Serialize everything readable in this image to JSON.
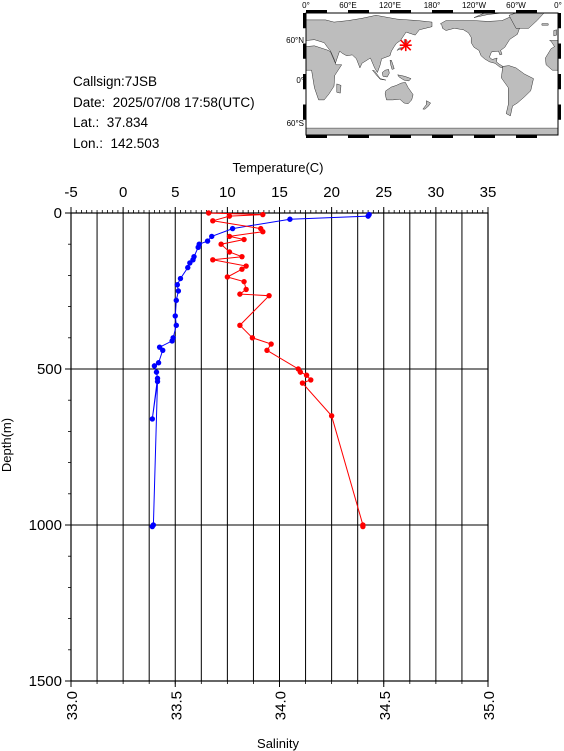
{
  "station": {
    "callsign": "Callsign:7JSB",
    "date": "Date:  2025/07/08 17:58(UTC)",
    "lat": "Lat.:  37.834",
    "lon": "Lon.:  142.503"
  },
  "map": {
    "lon_labels": [
      "0°",
      "60°E",
      "120°E",
      "180°",
      "120°W",
      "60°W",
      "0°"
    ],
    "lat_labels": [
      "60°N",
      "0°",
      "60°S"
    ],
    "marker_lon": 142.503,
    "marker_lat": 37.834,
    "marker_color": "#ff0000",
    "land_color": "#bdbdbd",
    "ocean_color": "#ffffff"
  },
  "chart_data": {
    "type": "line",
    "ylabel": "Depth(m)",
    "ylim": [
      1500,
      0
    ],
    "yticks": [
      "0",
      "500",
      "1000",
      "1500"
    ],
    "top_axis": {
      "label": "Temperature(C)",
      "range": [
        -5,
        35
      ],
      "ticks": [
        "-5",
        "0",
        "5",
        "10",
        "15",
        "20",
        "25",
        "30",
        "35"
      ]
    },
    "bottom_axis": {
      "label": "Salinity",
      "range": [
        33.0,
        35.0
      ],
      "ticks": [
        "33.0",
        "33.5",
        "34.0",
        "34.5",
        "35.0"
      ]
    },
    "grid": true,
    "series": [
      {
        "axis": "top",
        "color": "#0000ff",
        "points": [
          [
            23.6,
            5
          ],
          [
            23.5,
            10
          ],
          [
            16.0,
            20
          ],
          [
            10.5,
            50
          ],
          [
            8.5,
            75
          ],
          [
            8.1,
            90
          ],
          [
            7.3,
            100
          ],
          [
            7.2,
            110
          ],
          [
            6.8,
            140
          ],
          [
            6.7,
            150
          ],
          [
            6.4,
            160
          ],
          [
            6.2,
            175
          ],
          [
            5.5,
            210
          ],
          [
            5.2,
            230
          ],
          [
            5.3,
            250
          ],
          [
            5.1,
            280
          ],
          [
            5.0,
            330
          ],
          [
            5.1,
            360
          ],
          [
            4.8,
            400
          ],
          [
            4.7,
            410
          ],
          [
            3.5,
            430
          ],
          [
            3.8,
            440
          ],
          [
            3.4,
            480
          ],
          [
            3.0,
            490
          ],
          [
            3.2,
            510
          ],
          [
            3.3,
            530
          ],
          [
            2.8,
            660
          ],
          [
            3.3,
            540
          ],
          [
            2.9,
            1000
          ],
          [
            2.8,
            1005
          ]
        ]
      },
      {
        "axis": "bottom",
        "color": "#ff0000",
        "points": [
          [
            33.66,
            0
          ],
          [
            33.92,
            5
          ],
          [
            33.76,
            10
          ],
          [
            33.68,
            25
          ],
          [
            33.91,
            50
          ],
          [
            33.92,
            60
          ],
          [
            33.76,
            75
          ],
          [
            33.83,
            85
          ],
          [
            33.72,
            100
          ],
          [
            33.76,
            125
          ],
          [
            33.82,
            140
          ],
          [
            33.68,
            150
          ],
          [
            33.84,
            170
          ],
          [
            33.82,
            180
          ],
          [
            33.75,
            205
          ],
          [
            33.83,
            220
          ],
          [
            33.84,
            245
          ],
          [
            33.81,
            260
          ],
          [
            33.95,
            265
          ],
          [
            33.81,
            360
          ],
          [
            33.87,
            400
          ],
          [
            33.96,
            420
          ],
          [
            33.94,
            440
          ],
          [
            34.09,
            500
          ],
          [
            34.1,
            510
          ],
          [
            34.13,
            520
          ],
          [
            34.15,
            535
          ],
          [
            34.11,
            545
          ],
          [
            34.25,
            650
          ],
          [
            34.4,
            1000
          ],
          [
            34.4,
            1005
          ]
        ]
      }
    ]
  }
}
